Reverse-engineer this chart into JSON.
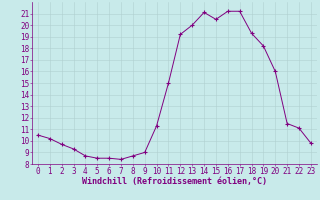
{
  "x": [
    0,
    1,
    2,
    3,
    4,
    5,
    6,
    7,
    8,
    9,
    10,
    11,
    12,
    13,
    14,
    15,
    16,
    17,
    18,
    19,
    20,
    21,
    22,
    23
  ],
  "y": [
    10.5,
    10.2,
    9.7,
    9.3,
    8.7,
    8.5,
    8.5,
    8.4,
    8.7,
    9.0,
    11.3,
    15.0,
    19.2,
    20.0,
    21.1,
    20.5,
    21.2,
    21.2,
    19.3,
    18.2,
    16.0,
    11.5,
    11.1,
    9.8
  ],
  "line_color": "#800080",
  "marker": "+",
  "marker_color": "#800080",
  "bg_color": "#c8eaea",
  "grid_color": "#b0d0d0",
  "xlabel": "Windchill (Refroidissement éolien,°C)",
  "xlabel_color": "#800080",
  "tick_color": "#800080",
  "ylim": [
    8,
    22
  ],
  "xlim": [
    -0.5,
    23.5
  ],
  "yticks": [
    8,
    9,
    10,
    11,
    12,
    13,
    14,
    15,
    16,
    17,
    18,
    19,
    20,
    21
  ],
  "xticks": [
    0,
    1,
    2,
    3,
    4,
    5,
    6,
    7,
    8,
    9,
    10,
    11,
    12,
    13,
    14,
    15,
    16,
    17,
    18,
    19,
    20,
    21,
    22,
    23
  ],
  "font_family": "monospace",
  "tick_fontsize": 5.5,
  "xlabel_fontsize": 6.0
}
